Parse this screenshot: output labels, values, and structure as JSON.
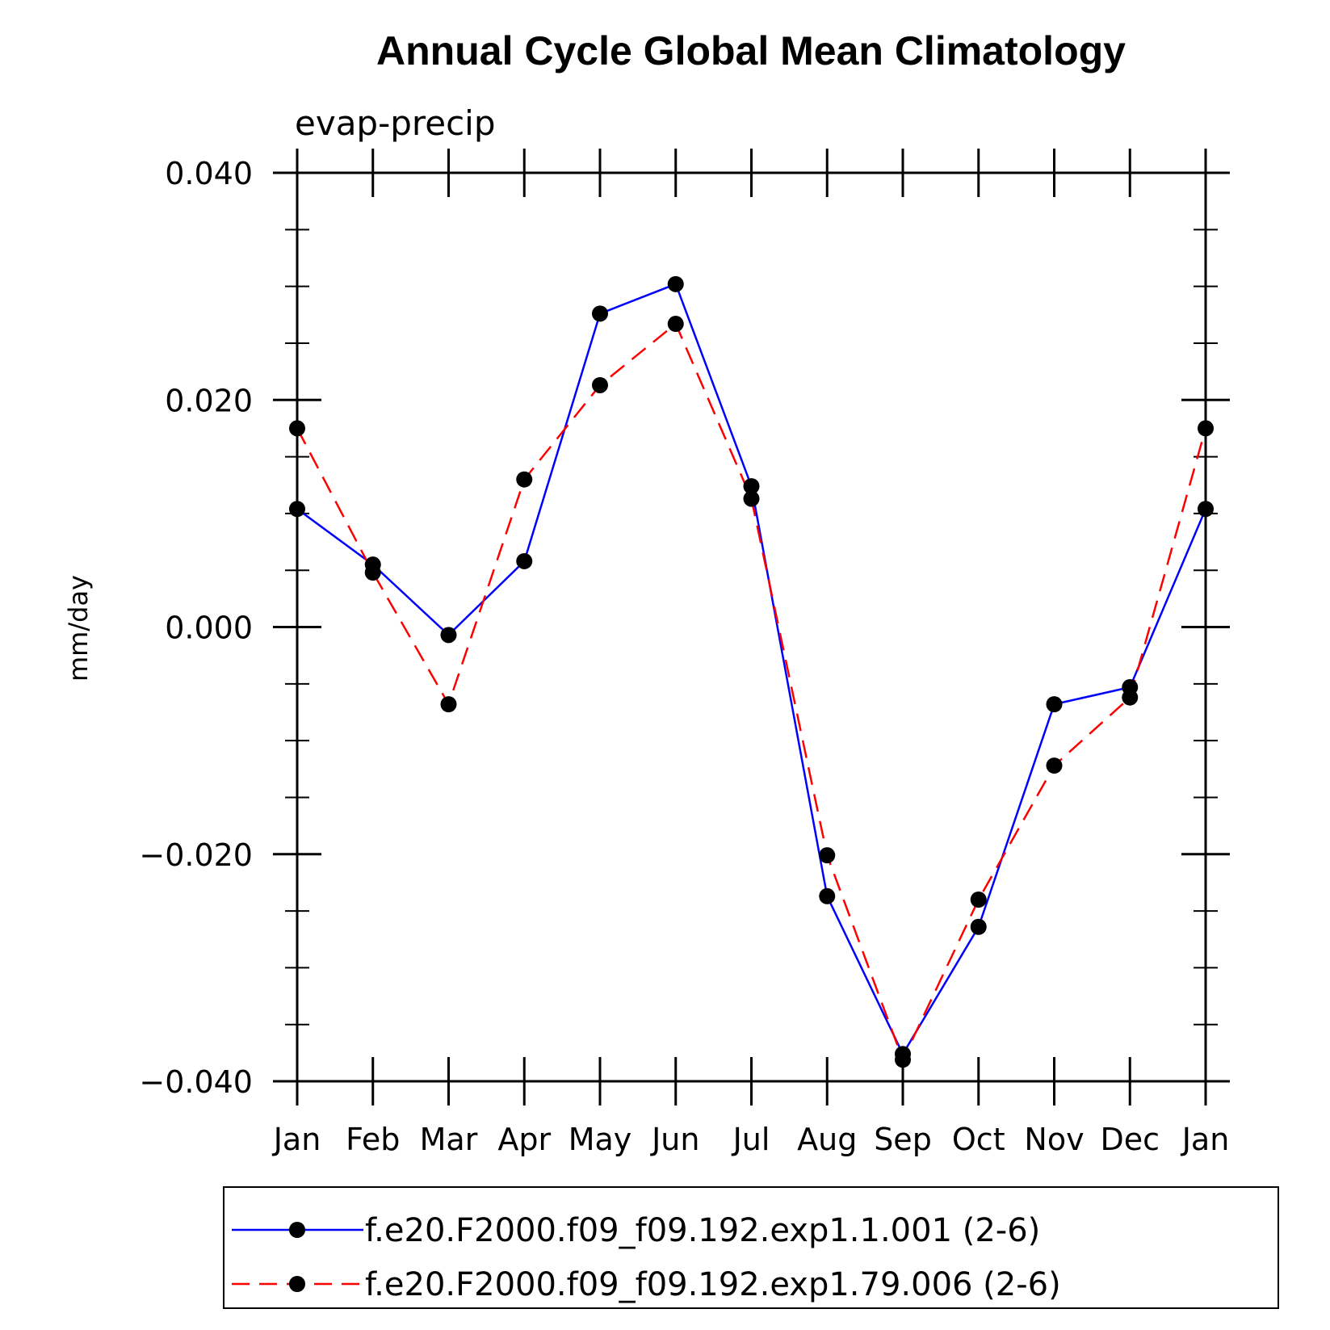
{
  "chart_data": {
    "type": "line",
    "title": "Annual Cycle Global Mean Climatology",
    "subtitle": "evap-precip",
    "ylabel": "mm/day",
    "xlabel": "",
    "categories": [
      "Jan",
      "Feb",
      "Mar",
      "Apr",
      "May",
      "Jun",
      "Jul",
      "Aug",
      "Sep",
      "Oct",
      "Nov",
      "Dec",
      "Jan"
    ],
    "ylim": [
      -0.04,
      0.04
    ],
    "yticks": [
      "0.040",
      "0.020",
      "0.000",
      "-0.020",
      "-0.040"
    ],
    "series": [
      {
        "name": "f.e20.F2000.f09_f09.192.exp1.1.001 (2-6)",
        "color": "#0000ff",
        "dash": "solid",
        "values": [
          0.0104,
          0.0055,
          -0.0007,
          0.0058,
          0.0276,
          0.0302,
          0.0124,
          -0.0237,
          -0.0376,
          -0.0264,
          -0.0068,
          -0.0053,
          0.0104
        ]
      },
      {
        "name": "f.e20.F2000.f09_f09.192.exp1.79.006 (2-6)",
        "color": "#ff0000",
        "dash": "dashed",
        "values": [
          0.0175,
          0.0048,
          -0.0068,
          0.013,
          0.0213,
          0.0267,
          0.0113,
          -0.0201,
          -0.0381,
          -0.024,
          -0.0122,
          -0.0062,
          0.0175
        ]
      }
    ],
    "markers": "filled-circle",
    "legend_position": "bottom"
  }
}
